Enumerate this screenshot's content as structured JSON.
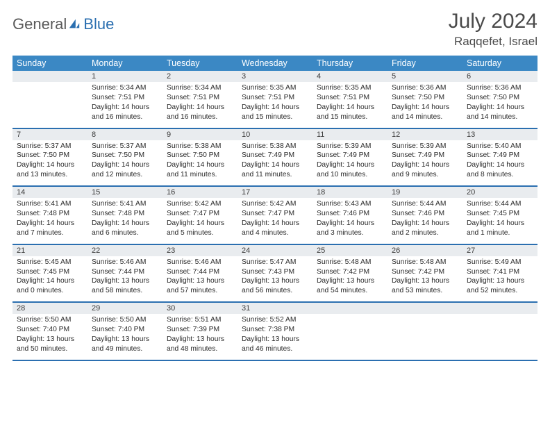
{
  "brand": {
    "part1": "General",
    "part2": "Blue"
  },
  "title": "July 2024",
  "location": "Raqqefet, Israel",
  "daynames": [
    "Sunday",
    "Monday",
    "Tuesday",
    "Wednesday",
    "Thursday",
    "Friday",
    "Saturday"
  ],
  "colors": {
    "header_bg": "#3b88c4",
    "accent": "#2b6fb0",
    "daynum_bg": "#e9ecef",
    "text": "#2a2a2a"
  },
  "weeks": [
    {
      "nums": [
        "",
        "1",
        "2",
        "3",
        "4",
        "5",
        "6"
      ],
      "cells": [
        {
          "sunrise": "",
          "sunset": "",
          "daylight": ""
        },
        {
          "sunrise": "Sunrise: 5:34 AM",
          "sunset": "Sunset: 7:51 PM",
          "daylight": "Daylight: 14 hours and 16 minutes."
        },
        {
          "sunrise": "Sunrise: 5:34 AM",
          "sunset": "Sunset: 7:51 PM",
          "daylight": "Daylight: 14 hours and 16 minutes."
        },
        {
          "sunrise": "Sunrise: 5:35 AM",
          "sunset": "Sunset: 7:51 PM",
          "daylight": "Daylight: 14 hours and 15 minutes."
        },
        {
          "sunrise": "Sunrise: 5:35 AM",
          "sunset": "Sunset: 7:51 PM",
          "daylight": "Daylight: 14 hours and 15 minutes."
        },
        {
          "sunrise": "Sunrise: 5:36 AM",
          "sunset": "Sunset: 7:50 PM",
          "daylight": "Daylight: 14 hours and 14 minutes."
        },
        {
          "sunrise": "Sunrise: 5:36 AM",
          "sunset": "Sunset: 7:50 PM",
          "daylight": "Daylight: 14 hours and 14 minutes."
        }
      ]
    },
    {
      "nums": [
        "7",
        "8",
        "9",
        "10",
        "11",
        "12",
        "13"
      ],
      "cells": [
        {
          "sunrise": "Sunrise: 5:37 AM",
          "sunset": "Sunset: 7:50 PM",
          "daylight": "Daylight: 14 hours and 13 minutes."
        },
        {
          "sunrise": "Sunrise: 5:37 AM",
          "sunset": "Sunset: 7:50 PM",
          "daylight": "Daylight: 14 hours and 12 minutes."
        },
        {
          "sunrise": "Sunrise: 5:38 AM",
          "sunset": "Sunset: 7:50 PM",
          "daylight": "Daylight: 14 hours and 11 minutes."
        },
        {
          "sunrise": "Sunrise: 5:38 AM",
          "sunset": "Sunset: 7:49 PM",
          "daylight": "Daylight: 14 hours and 11 minutes."
        },
        {
          "sunrise": "Sunrise: 5:39 AM",
          "sunset": "Sunset: 7:49 PM",
          "daylight": "Daylight: 14 hours and 10 minutes."
        },
        {
          "sunrise": "Sunrise: 5:39 AM",
          "sunset": "Sunset: 7:49 PM",
          "daylight": "Daylight: 14 hours and 9 minutes."
        },
        {
          "sunrise": "Sunrise: 5:40 AM",
          "sunset": "Sunset: 7:49 PM",
          "daylight": "Daylight: 14 hours and 8 minutes."
        }
      ]
    },
    {
      "nums": [
        "14",
        "15",
        "16",
        "17",
        "18",
        "19",
        "20"
      ],
      "cells": [
        {
          "sunrise": "Sunrise: 5:41 AM",
          "sunset": "Sunset: 7:48 PM",
          "daylight": "Daylight: 14 hours and 7 minutes."
        },
        {
          "sunrise": "Sunrise: 5:41 AM",
          "sunset": "Sunset: 7:48 PM",
          "daylight": "Daylight: 14 hours and 6 minutes."
        },
        {
          "sunrise": "Sunrise: 5:42 AM",
          "sunset": "Sunset: 7:47 PM",
          "daylight": "Daylight: 14 hours and 5 minutes."
        },
        {
          "sunrise": "Sunrise: 5:42 AM",
          "sunset": "Sunset: 7:47 PM",
          "daylight": "Daylight: 14 hours and 4 minutes."
        },
        {
          "sunrise": "Sunrise: 5:43 AM",
          "sunset": "Sunset: 7:46 PM",
          "daylight": "Daylight: 14 hours and 3 minutes."
        },
        {
          "sunrise": "Sunrise: 5:44 AM",
          "sunset": "Sunset: 7:46 PM",
          "daylight": "Daylight: 14 hours and 2 minutes."
        },
        {
          "sunrise": "Sunrise: 5:44 AM",
          "sunset": "Sunset: 7:45 PM",
          "daylight": "Daylight: 14 hours and 1 minute."
        }
      ]
    },
    {
      "nums": [
        "21",
        "22",
        "23",
        "24",
        "25",
        "26",
        "27"
      ],
      "cells": [
        {
          "sunrise": "Sunrise: 5:45 AM",
          "sunset": "Sunset: 7:45 PM",
          "daylight": "Daylight: 14 hours and 0 minutes."
        },
        {
          "sunrise": "Sunrise: 5:46 AM",
          "sunset": "Sunset: 7:44 PM",
          "daylight": "Daylight: 13 hours and 58 minutes."
        },
        {
          "sunrise": "Sunrise: 5:46 AM",
          "sunset": "Sunset: 7:44 PM",
          "daylight": "Daylight: 13 hours and 57 minutes."
        },
        {
          "sunrise": "Sunrise: 5:47 AM",
          "sunset": "Sunset: 7:43 PM",
          "daylight": "Daylight: 13 hours and 56 minutes."
        },
        {
          "sunrise": "Sunrise: 5:48 AM",
          "sunset": "Sunset: 7:42 PM",
          "daylight": "Daylight: 13 hours and 54 minutes."
        },
        {
          "sunrise": "Sunrise: 5:48 AM",
          "sunset": "Sunset: 7:42 PM",
          "daylight": "Daylight: 13 hours and 53 minutes."
        },
        {
          "sunrise": "Sunrise: 5:49 AM",
          "sunset": "Sunset: 7:41 PM",
          "daylight": "Daylight: 13 hours and 52 minutes."
        }
      ]
    },
    {
      "nums": [
        "28",
        "29",
        "30",
        "31",
        "",
        "",
        ""
      ],
      "cells": [
        {
          "sunrise": "Sunrise: 5:50 AM",
          "sunset": "Sunset: 7:40 PM",
          "daylight": "Daylight: 13 hours and 50 minutes."
        },
        {
          "sunrise": "Sunrise: 5:50 AM",
          "sunset": "Sunset: 7:40 PM",
          "daylight": "Daylight: 13 hours and 49 minutes."
        },
        {
          "sunrise": "Sunrise: 5:51 AM",
          "sunset": "Sunset: 7:39 PM",
          "daylight": "Daylight: 13 hours and 48 minutes."
        },
        {
          "sunrise": "Sunrise: 5:52 AM",
          "sunset": "Sunset: 7:38 PM",
          "daylight": "Daylight: 13 hours and 46 minutes."
        },
        {
          "sunrise": "",
          "sunset": "",
          "daylight": ""
        },
        {
          "sunrise": "",
          "sunset": "",
          "daylight": ""
        },
        {
          "sunrise": "",
          "sunset": "",
          "daylight": ""
        }
      ]
    }
  ]
}
